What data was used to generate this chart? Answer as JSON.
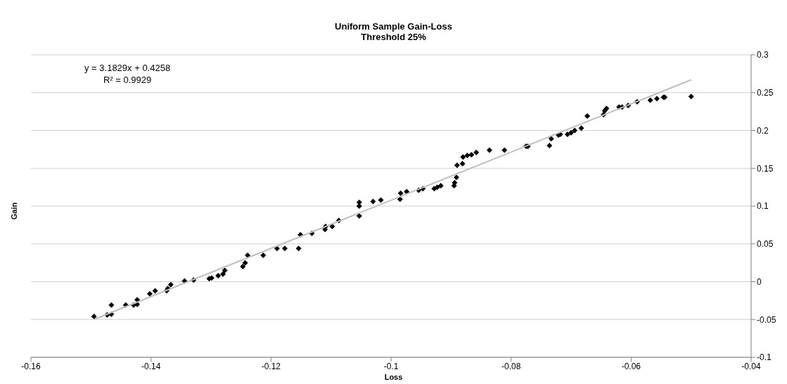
{
  "chart_data": {
    "type": "scatter",
    "title": "Uniform Sample Gain-Loss",
    "subtitle": "Threshold 25%",
    "xlabel": "Loss",
    "ylabel": "Gain",
    "xlim": [
      -0.16,
      -0.04
    ],
    "xticks": [
      -0.16,
      -0.14,
      -0.12,
      -0.1,
      -0.08,
      -0.06,
      -0.04
    ],
    "ylim": [
      -0.1,
      0.3
    ],
    "yticks": [
      -0.1,
      -0.05,
      0,
      0.05,
      0.1,
      0.15,
      0.2,
      0.25,
      0.3
    ],
    "grid": "y",
    "marker": "diamond",
    "annotations": [
      "y = 3.1829x + 0.4258",
      "R² = 0.9929"
    ],
    "series": [
      {
        "color": "#000000",
        "x": [
          -0.1495,
          -0.1473,
          -0.1466,
          -0.1466,
          -0.1442,
          -0.1429,
          -0.1423,
          -0.1423,
          -0.1402,
          -0.1393,
          -0.1374,
          -0.1372,
          -0.1367,
          -0.1344,
          -0.1329,
          -0.1303,
          -0.1299,
          -0.1288,
          -0.128,
          -0.1277,
          -0.1247,
          -0.1243,
          -0.1239,
          -0.1213,
          -0.119,
          -0.1177,
          -0.1154,
          -0.1151,
          -0.1132,
          -0.111,
          -0.1109,
          -0.1098,
          -0.1087,
          -0.1053,
          -0.1053,
          -0.1053,
          -0.103,
          -0.1017,
          -0.0985,
          -0.0984,
          -0.0974,
          -0.0954,
          -0.0947,
          -0.0928,
          -0.0923,
          -0.0917,
          -0.0895,
          -0.0894,
          -0.0891,
          -0.089,
          -0.0881,
          -0.088,
          -0.0873,
          -0.0866,
          -0.0858,
          -0.0836,
          -0.0811,
          -0.0775,
          -0.0772,
          -0.0736,
          -0.0733,
          -0.0721,
          -0.0718,
          -0.0706,
          -0.07,
          -0.0694,
          -0.0683,
          -0.0673,
          -0.0646,
          -0.0644,
          -0.0641,
          -0.062,
          -0.0615,
          -0.0605,
          -0.059,
          -0.0568,
          -0.0557,
          -0.0546,
          -0.0544,
          -0.05
        ],
        "values": [
          -0.046,
          -0.044,
          -0.043,
          -0.031,
          -0.031,
          -0.031,
          -0.03,
          -0.024,
          -0.016,
          -0.012,
          -0.012,
          -0.009,
          -0.004,
          0.001,
          0.002,
          0.004,
          0.005,
          0.008,
          0.01,
          0.015,
          0.02,
          0.025,
          0.035,
          0.035,
          0.044,
          0.044,
          0.044,
          0.062,
          0.064,
          0.069,
          0.073,
          0.073,
          0.081,
          0.087,
          0.1,
          0.105,
          0.106,
          0.108,
          0.109,
          0.117,
          0.119,
          0.121,
          0.123,
          0.123,
          0.125,
          0.127,
          0.127,
          0.131,
          0.138,
          0.154,
          0.156,
          0.165,
          0.167,
          0.168,
          0.171,
          0.174,
          0.174,
          0.179,
          0.179,
          0.18,
          0.189,
          0.194,
          0.195,
          0.195,
          0.197,
          0.2,
          0.203,
          0.219,
          0.221,
          0.226,
          0.229,
          0.231,
          0.231,
          0.233,
          0.238,
          0.24,
          0.242,
          0.244,
          0.244,
          0.245
        ]
      },
      {
        "type": "line",
        "marker": "none",
        "color": "#bfbfbf",
        "x": [
          -0.1495,
          -0.05
        ],
        "values": [
          -0.05,
          0.267
        ]
      }
    ]
  }
}
